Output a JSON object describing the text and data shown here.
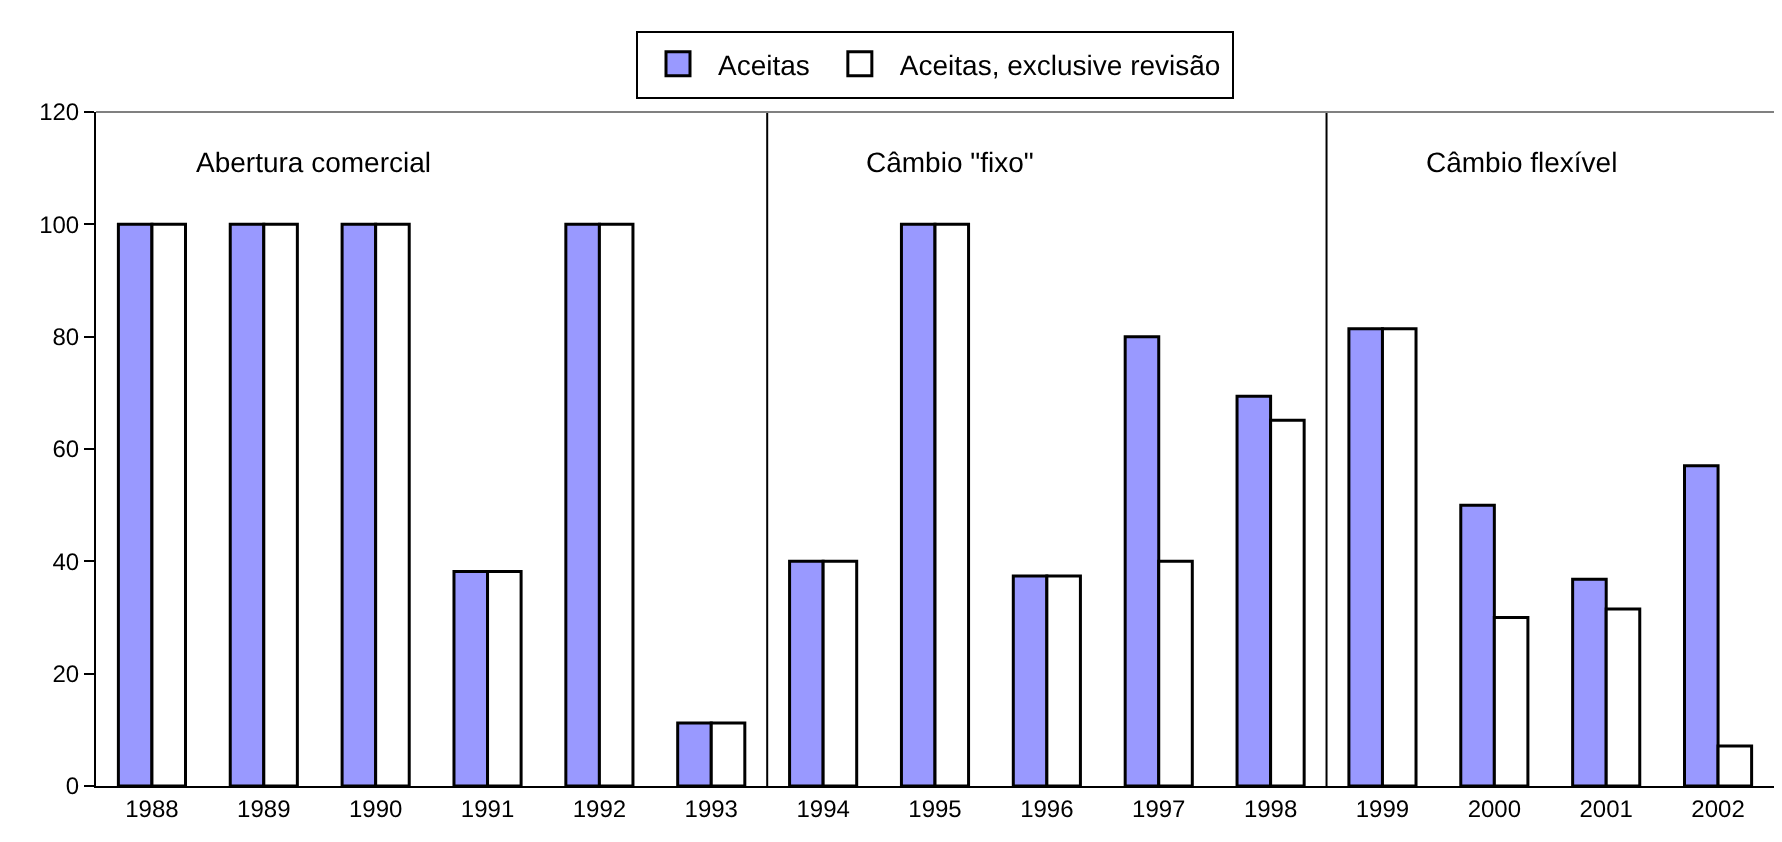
{
  "chart_data": {
    "type": "bar",
    "categories": [
      "1988",
      "1989",
      "1990",
      "1991",
      "1992",
      "1993",
      "1994",
      "1995",
      "1996",
      "1997",
      "1998",
      "1999",
      "2000",
      "2001",
      "2002"
    ],
    "series": [
      {
        "name": "Aceitas",
        "color": "#9999ff",
        "values": [
          100,
          100,
          100,
          38.2,
          100,
          11.2,
          40,
          100,
          37.4,
          80,
          69.4,
          81.4,
          50,
          36.8,
          57
        ]
      },
      {
        "name": "Aceitas, exclusive revisão",
        "color": "#ffffff",
        "values": [
          100,
          100,
          100,
          38.2,
          100,
          11.2,
          40,
          100,
          37.4,
          40,
          65.1,
          81.4,
          30,
          31.5,
          7.1
        ]
      }
    ],
    "ylim": [
      0,
      120
    ],
    "yticks": [
      0,
      20,
      40,
      60,
      80,
      100,
      120
    ],
    "grid": false,
    "legend": "top",
    "annotations": [
      "Abertura comercial",
      "Câmbio \"fixo\"",
      "Câmbio flexível"
    ]
  }
}
